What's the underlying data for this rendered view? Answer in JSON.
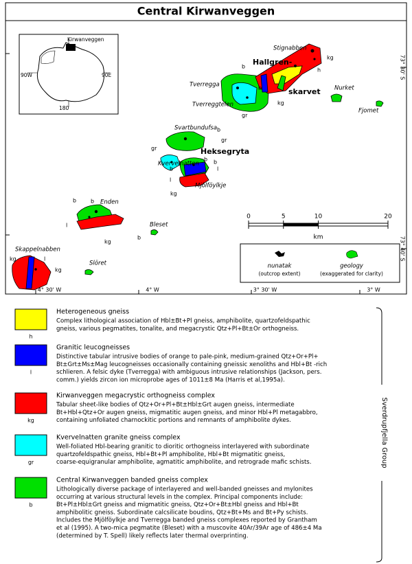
{
  "title": "Central Kirwanveggen",
  "inset": {
    "label": "Kirwanveggen",
    "west": "90W",
    "east": "90E",
    "south": "180"
  },
  "place_names": [
    "Stignabben",
    "Tverregga",
    "Tverreggtelen",
    "Nurket",
    "Fjomet",
    "Svartbundufsa",
    "Kvervelnatten",
    "Mjölföylkje",
    "Enden",
    "Bleset",
    "Skappelnabben",
    "Slöret"
  ],
  "major_names": [
    "Hallgren-",
    "skarvet",
    "Heksegryta"
  ],
  "unit_letters": [
    "kg",
    "h",
    "b",
    "b",
    "gr",
    "kg",
    "b",
    "gr",
    "gr",
    "b",
    "b",
    "l",
    "b",
    "l",
    "kg",
    "b",
    "b",
    "l",
    "kg",
    "b",
    "kg",
    "l",
    "kg"
  ],
  "coords": {
    "lat": [
      "73° 30' S",
      "73° 40' S"
    ],
    "lon": [
      "4° 30' W",
      "4° W",
      "3° 30' W",
      "3° W"
    ]
  },
  "scale": {
    "ticks": [
      0,
      5,
      10,
      20
    ],
    "max": 20,
    "unit": "km"
  },
  "symbols": {
    "nunatak": "nunatak",
    "nunatak_note": "(outcrop extent)",
    "geology": "geology",
    "geology_note": "(exaggerated for clarity)"
  },
  "group": "Sverdrupfjella Group",
  "legend": [
    {
      "color": "#ffff00",
      "letter": "h",
      "title": "Heterogeneous gneiss",
      "lines": [
        "Complex lithological association of Hbl±Bt+Pl gneiss, amphibolite, quartzofeldspathic",
        "gneiss, various pegmatites, tonalite, and megacrystic Qtz+Pl+Bt±Or orthogneiss."
      ]
    },
    {
      "color": "#0000ff",
      "letter": "l",
      "title": "Granitic leucogneisses",
      "lines": [
        "Distinctive tabular intrusive bodies of orange to pale-pink, medium-grained Qtz+Or+Pl+",
        "Bt±Grt±Ms±Mag leucogneisses occasionally containing gneissic xenoliths and Hbl+Bt -rich",
        "schlieren. A felsic dyke (Tverregga) with ambiguous intrusive relationships (Jackson, pers.",
        "comm.) yields zircon ion microprobe ages of 1011±8 Ma (Harris et al,1995a)."
      ]
    },
    {
      "color": "#ff0000",
      "letter": "kg",
      "title": "Kirwanveggen megacrystic orthogneiss complex",
      "lines": [
        "Tabular sheet-like bodies of Qtz+Or+Pl+Bt±Hbl±Grt augen gneiss, intermediate",
        "Bt+Hbl+Qtz+Or augen gneiss, migmatitic augen gneiss, and minor Hbl+Pl metagabbro,",
        "containing unfoliated charnockitic portions and remnants of amphibolite dykes."
      ]
    },
    {
      "color": "#00ffff",
      "letter": "gr",
      "title": "Kvervelnatten granite gneiss complex",
      "lines": [
        "Well-foliated Hbl-bearing granitic to dioritic orthogneiss interlayered with subordinate",
        "quartzofeldspathic gneiss, Hbl+Bt+Pl amphibolite, Hbl+Bt migmatitic gneiss,",
        "coarse-equigranular amphibolite, agmatitic amphibolite, and retrograde mafic schists."
      ]
    },
    {
      "color": "#00e000",
      "letter": "b",
      "title": "Central Kirwanveggen banded gneiss complex",
      "lines": [
        "Lithologically diverse package of interlayered and well-banded gneisses and mylonites",
        "occurring at various structural levels in the complex. Principal components include:",
        "Bt+Pl±Hbl±Grt gneiss and migmatitic gneiss, Qtz+Or+Bt±Hbl gneiss and Hbl+Bt",
        "amphibolitic gneiss. Subordinate calcsilicate boudins, Qtz+Bt+Ms and Bt+Py schists.",
        "Includes the Mjölföylkje and Tverregga banded gneiss complexes reported by Grantham",
        "et al (1995). A two-mica pegmatite (Bleset) with a muscovite 40Ar/39Ar age of 486±4 Ma",
        "(determined by T. Spell) likely reflects later thermal overprinting."
      ]
    }
  ]
}
